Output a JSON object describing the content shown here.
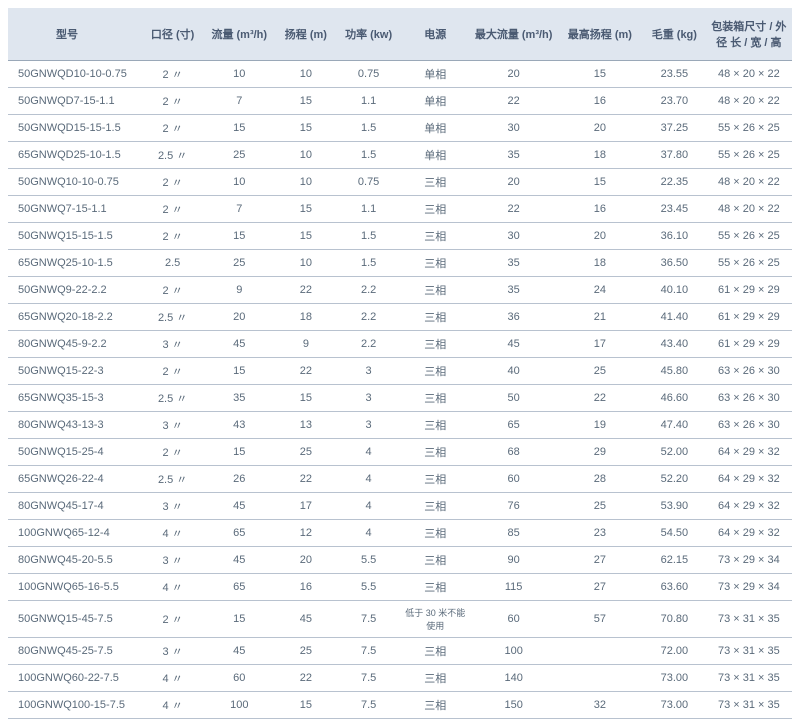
{
  "table": {
    "columns": [
      "型号",
      "口径 (寸)",
      "流量 (m³/h)",
      "扬程 (m)",
      "功率 (kw)",
      "电源",
      "最大流量 (m³/h)",
      "最高扬程 (m)",
      "毛重 (kg)",
      "包装箱尺寸 / 外径 长 / 宽 / 高"
    ],
    "rows": [
      [
        "50GNWQD10-10-0.75",
        "2 〃",
        "10",
        "10",
        "0.75",
        "单相",
        "20",
        "15",
        "23.55",
        "48 × 20 × 22"
      ],
      [
        "50GNWQD7-15-1.1",
        "2 〃",
        "7",
        "15",
        "1.1",
        "单相",
        "22",
        "16",
        "23.70",
        "48 × 20 × 22"
      ],
      [
        "50GNWQD15-15-1.5",
        "2 〃",
        "15",
        "15",
        "1.5",
        "单相",
        "30",
        "20",
        "37.25",
        "55 × 26 × 25"
      ],
      [
        "65GNWQD25-10-1.5",
        "2.5 〃",
        "25",
        "10",
        "1.5",
        "单相",
        "35",
        "18",
        "37.80",
        "55 × 26 × 25"
      ],
      [
        "50GNWQ10-10-0.75",
        "2 〃",
        "10",
        "10",
        "0.75",
        "三相",
        "20",
        "15",
        "22.35",
        "48 × 20 × 22"
      ],
      [
        "50GNWQ7-15-1.1",
        "2 〃",
        "7",
        "15",
        "1.1",
        "三相",
        "22",
        "16",
        "23.45",
        "48 × 20 × 22"
      ],
      [
        "50GNWQ15-15-1.5",
        "2 〃",
        "15",
        "15",
        "1.5",
        "三相",
        "30",
        "20",
        "36.10",
        "55 × 26 × 25"
      ],
      [
        "65GNWQ25-10-1.5",
        "2.5",
        "25",
        "10",
        "1.5",
        "三相",
        "35",
        "18",
        "36.50",
        "55 × 26 × 25"
      ],
      [
        "50GNWQ9-22-2.2",
        "2 〃",
        "9",
        "22",
        "2.2",
        "三相",
        "35",
        "24",
        "40.10",
        "61 × 29 × 29"
      ],
      [
        "65GNWQ20-18-2.2",
        "2.5 〃",
        "20",
        "18",
        "2.2",
        "三相",
        "36",
        "21",
        "41.40",
        "61 × 29 × 29"
      ],
      [
        "80GNWQ45-9-2.2",
        "3 〃",
        "45",
        "9",
        "2.2",
        "三相",
        "45",
        "17",
        "43.40",
        "61 × 29 × 29"
      ],
      [
        "50GNWQ15-22-3",
        "2 〃",
        "15",
        "22",
        "3",
        "三相",
        "40",
        "25",
        "45.80",
        "63 × 26 × 30"
      ],
      [
        "65GNWQ35-15-3",
        "2.5 〃",
        "35",
        "15",
        "3",
        "三相",
        "50",
        "22",
        "46.60",
        "63 × 26 × 30"
      ],
      [
        "80GNWQ43-13-3",
        "3 〃",
        "43",
        "13",
        "3",
        "三相",
        "65",
        "19",
        "47.40",
        "63 × 26 × 30"
      ],
      [
        "50GNWQ15-25-4",
        "2 〃",
        "15",
        "25",
        "4",
        "三相",
        "68",
        "29",
        "52.00",
        "64 × 29 × 32"
      ],
      [
        "65GNWQ26-22-4",
        "2.5 〃",
        "26",
        "22",
        "4",
        "三相",
        "60",
        "28",
        "52.20",
        "64 × 29 × 32"
      ],
      [
        "80GNWQ45-17-4",
        "3 〃",
        "45",
        "17",
        "4",
        "三相",
        "76",
        "25",
        "53.90",
        "64 × 29 × 32"
      ],
      [
        "100GNWQ65-12-4",
        "4 〃",
        "65",
        "12",
        "4",
        "三相",
        "85",
        "23",
        "54.50",
        "64 × 29 × 32"
      ],
      [
        "80GNWQ45-20-5.5",
        "3 〃",
        "45",
        "20",
        "5.5",
        "三相",
        "90",
        "27",
        "62.15",
        "73 × 29 × 34"
      ],
      [
        "100GNWQ65-16-5.5",
        "4 〃",
        "65",
        "16",
        "5.5",
        "三相",
        "115",
        "27",
        "63.60",
        "73 × 29 × 34"
      ],
      [
        "50GNWQ15-45-7.5",
        "2 〃",
        "15",
        "45",
        "7.5",
        "低于 30 米不能使用",
        "60",
        "57",
        "70.80",
        "73 × 31 × 35"
      ],
      [
        "80GNWQ45-25-7.5",
        "3 〃",
        "45",
        "25",
        "7.5",
        "三相",
        "100",
        "",
        "72.00",
        "73 × 31 × 35"
      ],
      [
        "100GNWQ60-22-7.5",
        "4 〃",
        "60",
        "22",
        "7.5",
        "三相",
        "140",
        "",
        "73.00",
        "73 × 31 × 35"
      ],
      [
        "100GNWQ100-15-7.5",
        "4 〃",
        "100",
        "15",
        "7.5",
        "三相",
        "150",
        "32",
        "73.00",
        "73 × 31 × 35"
      ]
    ],
    "header_bg": "#dfe6ef",
    "border_color": "#b8c2cf",
    "text_color": "#5a6a7a",
    "col_widths": [
      "17%",
      "8%",
      "9%",
      "8%",
      "8%",
      "9%",
      "11%",
      "11%",
      "8%",
      "11%"
    ]
  }
}
